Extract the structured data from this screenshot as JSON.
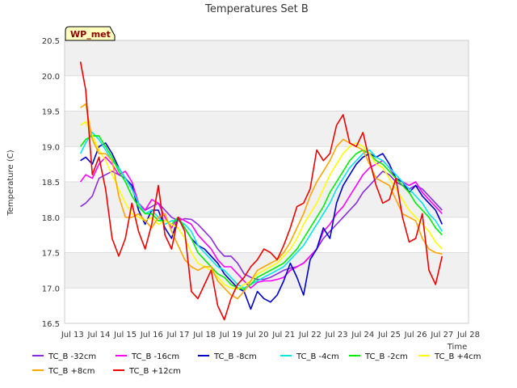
{
  "chart_data": {
    "type": "line",
    "title": "Temperatures Set B",
    "xlabel": "Time",
    "ylabel": "Temperature (C)",
    "tag": "WP_met",
    "x_ticks": [
      13,
      14,
      15,
      16,
      17,
      18,
      19,
      20,
      21,
      22,
      23,
      24,
      25,
      26,
      27,
      28
    ],
    "x_tick_labels": [
      "Jul 13",
      "Jul 14",
      "Jul 15",
      "Jul 16",
      "Jul 17",
      "Jul 18",
      "Jul 19",
      "Jul 20",
      "Jul 21",
      "Jul 22",
      "Jul 23",
      "Jul 24",
      "Jul 25",
      "Jul 26",
      "Jul 27",
      "Jul 28"
    ],
    "y_ticks": [
      16.5,
      17.0,
      17.5,
      18.0,
      18.5,
      19.0,
      19.5,
      20.0,
      20.5
    ],
    "y_tick_labels": [
      "16.5",
      "17.0",
      "17.5",
      "18.0",
      "18.5",
      "19.0",
      "19.5",
      "20.0",
      "20.5"
    ],
    "xlim": [
      12.7,
      28
    ],
    "ylim": [
      16.5,
      20.5
    ],
    "grid": true,
    "legend_position": "bottom",
    "x": [
      13.3,
      13.5,
      13.75,
      14.0,
      14.25,
      14.5,
      14.75,
      15.0,
      15.25,
      15.5,
      15.75,
      16.0,
      16.25,
      16.5,
      16.75,
      17.0,
      17.25,
      17.5,
      17.75,
      18.0,
      18.25,
      18.5,
      18.75,
      19.0,
      19.25,
      19.5,
      19.75,
      20.0,
      20.25,
      20.5,
      20.75,
      21.0,
      21.25,
      21.5,
      21.75,
      22.0,
      22.25,
      22.5,
      22.75,
      23.0,
      23.25,
      23.5,
      23.75,
      24.0,
      24.25,
      24.5,
      24.75,
      25.0,
      25.25,
      25.5,
      25.75,
      26.0,
      26.25,
      26.5,
      26.75,
      27.0
    ],
    "series": [
      {
        "name": "TC_B -32cm",
        "color": "#8a2be2",
        "values": [
          18.15,
          18.2,
          18.3,
          18.55,
          18.6,
          18.65,
          18.6,
          18.55,
          18.4,
          18.2,
          18.1,
          18.15,
          18.2,
          18.1,
          18.0,
          17.95,
          17.98,
          17.97,
          17.9,
          17.8,
          17.7,
          17.55,
          17.45,
          17.45,
          17.35,
          17.2,
          17.15,
          17.12,
          17.12,
          17.15,
          17.2,
          17.25,
          17.28,
          17.3,
          17.35,
          17.45,
          17.55,
          17.7,
          17.8,
          17.9,
          18.0,
          18.1,
          18.2,
          18.35,
          18.45,
          18.55,
          18.65,
          18.6,
          18.5,
          18.45,
          18.4,
          18.45,
          18.4,
          18.3,
          18.2,
          18.1
        ]
      },
      {
        "name": "TC_B -16cm",
        "color": "#ff00ff",
        "values": [
          18.5,
          18.6,
          18.55,
          18.75,
          18.85,
          18.75,
          18.6,
          18.65,
          18.5,
          18.2,
          18.1,
          18.25,
          18.2,
          18.0,
          17.85,
          18.0,
          17.95,
          17.9,
          17.75,
          17.65,
          17.55,
          17.4,
          17.3,
          17.3,
          17.2,
          17.1,
          17.0,
          17.08,
          17.1,
          17.1,
          17.12,
          17.15,
          17.25,
          17.3,
          17.35,
          17.45,
          17.55,
          17.8,
          17.9,
          18.05,
          18.15,
          18.3,
          18.45,
          18.6,
          18.7,
          18.75,
          18.8,
          18.7,
          18.55,
          18.5,
          18.45,
          18.5,
          18.35,
          18.25,
          18.15,
          18.05
        ]
      },
      {
        "name": "TC_B -8cm",
        "color": "#0000cd",
        "values": [
          18.8,
          18.85,
          18.75,
          19.0,
          19.05,
          18.9,
          18.7,
          18.55,
          18.45,
          18.1,
          17.9,
          18.1,
          18.1,
          17.85,
          17.7,
          18.0,
          17.85,
          17.7,
          17.6,
          17.55,
          17.45,
          17.35,
          17.2,
          17.1,
          17.0,
          16.95,
          16.7,
          16.95,
          16.85,
          16.8,
          16.9,
          17.1,
          17.35,
          17.15,
          16.9,
          17.4,
          17.55,
          17.85,
          17.7,
          18.2,
          18.45,
          18.6,
          18.75,
          18.85,
          18.9,
          18.85,
          18.9,
          18.75,
          18.55,
          18.5,
          18.35,
          18.45,
          18.3,
          18.2,
          18.1,
          17.9
        ]
      },
      {
        "name": "TC_B -4cm",
        "color": "#00e5ee",
        "values": [
          18.9,
          19.05,
          19.2,
          19.1,
          18.95,
          18.8,
          18.7,
          18.55,
          18.4,
          18.2,
          18.05,
          18.1,
          18.0,
          17.9,
          17.95,
          17.95,
          17.9,
          17.8,
          17.6,
          17.5,
          17.4,
          17.3,
          17.25,
          17.15,
          17.05,
          17.0,
          17.05,
          17.1,
          17.15,
          17.2,
          17.25,
          17.3,
          17.4,
          17.5,
          17.6,
          17.75,
          17.9,
          18.05,
          18.2,
          18.4,
          18.55,
          18.7,
          18.8,
          18.9,
          18.95,
          18.85,
          18.8,
          18.7,
          18.6,
          18.5,
          18.4,
          18.3,
          18.2,
          18.05,
          17.95,
          17.8
        ]
      },
      {
        "name": "TC_B -2cm",
        "color": "#00ee00",
        "values": [
          19.0,
          19.1,
          19.15,
          19.15,
          19.0,
          18.85,
          18.65,
          18.5,
          18.3,
          18.15,
          18.05,
          18.05,
          17.95,
          17.95,
          17.9,
          18.0,
          17.85,
          17.7,
          17.5,
          17.4,
          17.3,
          17.2,
          17.15,
          17.05,
          17.0,
          16.98,
          17.05,
          17.15,
          17.2,
          17.25,
          17.3,
          17.35,
          17.45,
          17.55,
          17.7,
          17.85,
          18.0,
          18.15,
          18.35,
          18.5,
          18.65,
          18.8,
          18.9,
          18.95,
          18.9,
          18.8,
          18.75,
          18.65,
          18.55,
          18.45,
          18.35,
          18.2,
          18.1,
          18.0,
          17.85,
          17.75
        ]
      },
      {
        "name": "TC_B +4cm",
        "color": "#ffff00",
        "values": [
          19.3,
          19.35,
          19.15,
          18.95,
          18.8,
          18.6,
          18.4,
          18.2,
          18.05,
          18.0,
          17.95,
          18.0,
          17.9,
          17.95,
          17.9,
          17.85,
          17.7,
          17.5,
          17.35,
          17.3,
          17.25,
          17.15,
          17.05,
          17.0,
          16.98,
          17.05,
          17.1,
          17.2,
          17.25,
          17.3,
          17.35,
          17.45,
          17.55,
          17.7,
          17.9,
          18.05,
          18.2,
          18.4,
          18.6,
          18.75,
          18.9,
          19.0,
          19.05,
          19.0,
          18.9,
          18.75,
          18.7,
          18.55,
          18.4,
          18.25,
          18.1,
          18.0,
          17.9,
          17.8,
          17.65,
          17.55
        ]
      },
      {
        "name": "TC_B +8cm",
        "color": "#ffa500",
        "values": [
          19.55,
          19.6,
          19.1,
          18.9,
          18.9,
          18.8,
          18.3,
          18.0,
          18.0,
          18.05,
          17.95,
          17.85,
          18.0,
          18.05,
          17.8,
          17.6,
          17.4,
          17.3,
          17.25,
          17.3,
          17.3,
          17.1,
          17.0,
          16.9,
          16.85,
          16.95,
          17.1,
          17.25,
          17.3,
          17.35,
          17.4,
          17.5,
          17.65,
          17.85,
          18.05,
          18.3,
          18.5,
          18.65,
          18.8,
          19.0,
          19.1,
          19.05,
          19.0,
          18.95,
          18.75,
          18.55,
          18.5,
          18.45,
          18.25,
          18.05,
          18.0,
          17.95,
          17.7,
          17.55,
          17.5,
          17.48
        ]
      },
      {
        "name": "TC_B +12cm",
        "color": "#ee0000",
        "values": [
          20.2,
          19.8,
          18.6,
          18.85,
          18.4,
          17.7,
          17.45,
          17.7,
          18.2,
          17.8,
          17.55,
          17.9,
          18.45,
          17.75,
          17.55,
          18.0,
          17.8,
          16.95,
          16.85,
          17.05,
          17.25,
          16.75,
          16.55,
          16.85,
          17.05,
          17.15,
          17.3,
          17.4,
          17.55,
          17.5,
          17.4,
          17.6,
          17.85,
          18.15,
          18.2,
          18.4,
          18.95,
          18.8,
          18.9,
          19.3,
          19.45,
          19.05,
          19.0,
          19.2,
          18.8,
          18.45,
          18.2,
          18.25,
          18.55,
          18.0,
          17.65,
          17.7,
          18.05,
          17.25,
          17.05,
          17.45
        ]
      }
    ]
  }
}
